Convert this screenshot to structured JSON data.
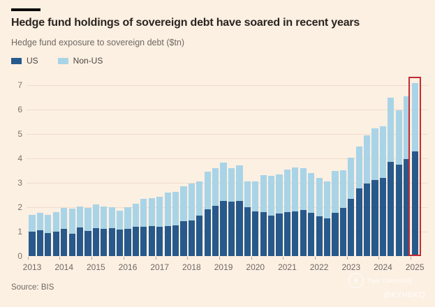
{
  "page": {
    "background": "#fcf0e3"
  },
  "header": {
    "title": "Hedge fund holdings of sovereign debt have soared in recent years",
    "subtitle": "Hedge fund exposure to sovereign debt ($tn)"
  },
  "legend": {
    "items": [
      {
        "label": "US",
        "color": "#27598c"
      },
      {
        "label": "Non-US",
        "color": "#a9d3e6"
      }
    ]
  },
  "source": "Source: BIS",
  "watermark": {
    "brand": "Tiger Community",
    "handle": "@KYHBKQ"
  },
  "chart_data": {
    "type": "bar",
    "stacked": true,
    "title": "Hedge fund holdings of sovereign debt have soared in recent years",
    "subtitle": "Hedge fund exposure to sovereign debt ($tn)",
    "unit": "$tn",
    "ylim": [
      0,
      7
    ],
    "yticks": [
      0,
      1,
      2,
      3,
      4,
      5,
      6,
      7
    ],
    "grid": "horizontal",
    "legend_position": "top-left",
    "x_year_labels": [
      "2013",
      "2014",
      "2015",
      "2016",
      "2017",
      "2018",
      "2019",
      "2020",
      "2021",
      "2022",
      "2023",
      "2024",
      "2025"
    ],
    "categories": [
      "2013 Q1",
      "2013 Q2",
      "2013 Q3",
      "2013 Q4",
      "2014 Q1",
      "2014 Q2",
      "2014 Q3",
      "2014 Q4",
      "2015 Q1",
      "2015 Q2",
      "2015 Q3",
      "2015 Q4",
      "2016 Q1",
      "2016 Q2",
      "2016 Q3",
      "2016 Q4",
      "2017 Q1",
      "2017 Q2",
      "2017 Q3",
      "2017 Q4",
      "2018 Q1",
      "2018 Q2",
      "2018 Q3",
      "2018 Q4",
      "2019 Q1",
      "2019 Q2",
      "2019 Q3",
      "2019 Q4",
      "2020 Q1",
      "2020 Q2",
      "2020 Q3",
      "2020 Q4",
      "2021 Q1",
      "2021 Q2",
      "2021 Q3",
      "2021 Q4",
      "2022 Q1",
      "2022 Q2",
      "2022 Q3",
      "2022 Q4",
      "2023 Q1",
      "2023 Q2",
      "2023 Q3",
      "2023 Q4",
      "2024 Q1",
      "2024 Q2",
      "2024 Q3",
      "2024 Q4",
      "2025 Q1"
    ],
    "series": [
      {
        "name": "US",
        "color": "#27598c",
        "values": [
          1.0,
          1.05,
          0.93,
          1.0,
          1.1,
          0.91,
          1.16,
          1.02,
          1.14,
          1.12,
          1.14,
          1.1,
          1.12,
          1.21,
          1.21,
          1.24,
          1.21,
          1.24,
          1.27,
          1.43,
          1.45,
          1.67,
          1.9,
          2.05,
          2.26,
          2.22,
          2.27,
          2.0,
          1.83,
          1.81,
          1.65,
          1.73,
          1.79,
          1.83,
          1.89,
          1.76,
          1.62,
          1.54,
          1.76,
          1.97,
          2.35,
          2.76,
          2.97,
          3.11,
          3.21,
          3.86,
          3.74,
          3.96,
          4.29
        ]
      },
      {
        "name": "Non-US",
        "color": "#a9d3e6",
        "values": [
          0.68,
          0.72,
          0.77,
          0.81,
          0.87,
          1.03,
          0.87,
          0.95,
          0.98,
          0.9,
          0.87,
          0.75,
          0.88,
          0.93,
          1.12,
          1.14,
          1.22,
          1.36,
          1.37,
          1.43,
          1.52,
          1.38,
          1.56,
          1.54,
          1.58,
          1.37,
          1.44,
          1.05,
          1.24,
          1.51,
          1.64,
          1.61,
          1.76,
          1.81,
          1.7,
          1.65,
          1.57,
          1.53,
          1.72,
          1.55,
          1.67,
          1.74,
          1.96,
          2.11,
          2.1,
          2.64,
          2.23,
          2.57,
          2.79
        ]
      }
    ],
    "highlight": {
      "index": 48,
      "color": "#c52a32",
      "note": "latest quarter outlined in red"
    }
  }
}
